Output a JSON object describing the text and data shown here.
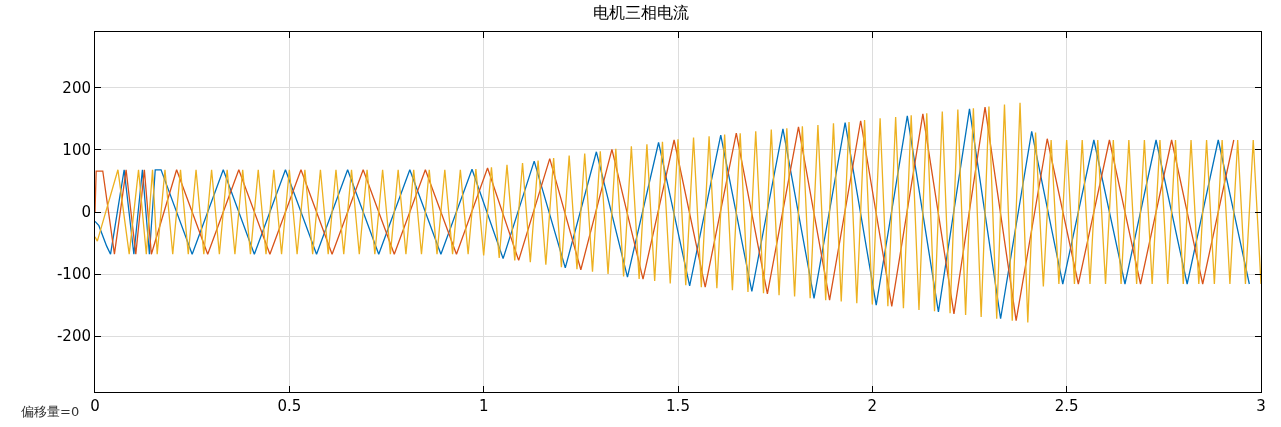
{
  "chart_data": {
    "type": "line",
    "title": "电机三相电流",
    "xlim": [
      0,
      3
    ],
    "xticks": [
      0,
      0.5,
      1,
      1.5,
      2,
      2.5,
      3
    ],
    "ylim": [
      -290,
      290
    ],
    "yticks": [
      -200,
      -100,
      0,
      100,
      200
    ],
    "grid": true,
    "annotations": [
      "偏移量=0"
    ],
    "series": [
      {
        "color": "#0072bd",
        "x": [
          0,
          0.01,
          0.03,
          0.04,
          0.075,
          0.1,
          0.122,
          0.14,
          0.155,
          0.17,
          0.25,
          0.33,
          0.41,
          0.49,
          0.57,
          0.65,
          0.73,
          0.81,
          0.89,
          0.97,
          1.05,
          1.13,
          1.21,
          1.29,
          1.37,
          1.45,
          1.53,
          1.61,
          1.69,
          1.77,
          1.85,
          1.93,
          2.01,
          2.09,
          2.17,
          2.25,
          2.33,
          2.41,
          2.49,
          2.57,
          2.65,
          2.73,
          2.81,
          2.89,
          2.97
        ],
        "values": [
          -15,
          -22,
          -55,
          -68,
          68,
          -68,
          68,
          -68,
          68,
          68,
          -68,
          68,
          -68,
          68,
          -68,
          68,
          -68,
          68,
          -68,
          69,
          -75,
          82,
          -90,
          97,
          -105,
          112,
          -119,
          124,
          -128,
          134,
          -139,
          144,
          -150,
          155,
          -161,
          166,
          -172,
          130,
          -116,
          116,
          -116,
          116,
          -116,
          116,
          -116
        ]
      },
      {
        "color": "#d95319",
        "x": [
          0,
          0.003,
          0.02,
          0.05,
          0.08,
          0.105,
          0.127,
          0.145,
          0.21,
          0.29,
          0.37,
          0.45,
          0.53,
          0.61,
          0.69,
          0.77,
          0.85,
          0.93,
          1.01,
          1.09,
          1.17,
          1.25,
          1.33,
          1.41,
          1.49,
          1.57,
          1.65,
          1.73,
          1.81,
          1.89,
          1.97,
          2.05,
          2.13,
          2.21,
          2.29,
          2.37,
          2.45,
          2.53,
          2.61,
          2.69,
          2.77,
          2.85,
          2.93
        ],
        "values": [
          0,
          66,
          66,
          -68,
          68,
          -68,
          68,
          -68,
          68,
          -68,
          68,
          -68,
          68,
          -68,
          68,
          -68,
          68,
          -68,
          71,
          -78,
          86,
          -93,
          101,
          -108,
          116,
          -121,
          127,
          -132,
          137,
          -142,
          147,
          -152,
          158,
          -164,
          169,
          -175,
          118,
          -116,
          116,
          -116,
          116,
          -116,
          116
        ]
      },
      {
        "color": "#edb120",
        "x": [
          0,
          0.006,
          0.059,
          0.088,
          0.112,
          0.132,
          0.148,
          0.16,
          0.18,
          0.2,
          0.22,
          0.24,
          0.26,
          0.28,
          0.3,
          0.32,
          0.34,
          0.36,
          0.38,
          0.4,
          0.42,
          0.44,
          0.46,
          0.48,
          0.5,
          0.52,
          0.54,
          0.56,
          0.58,
          0.6,
          0.62,
          0.64,
          0.66,
          0.68,
          0.7,
          0.72,
          0.74,
          0.76,
          0.78,
          0.8,
          0.82,
          0.84,
          0.86,
          0.88,
          0.9,
          0.92,
          0.94,
          0.96,
          0.98,
          1.0,
          1.02,
          1.04,
          1.06,
          1.08,
          1.1,
          1.12,
          1.14,
          1.16,
          1.18,
          1.2,
          1.22,
          1.24,
          1.26,
          1.28,
          1.3,
          1.32,
          1.34,
          1.36,
          1.38,
          1.4,
          1.42,
          1.44,
          1.46,
          1.48,
          1.5,
          1.52,
          1.54,
          1.56,
          1.58,
          1.6,
          1.62,
          1.64,
          1.66,
          1.68,
          1.7,
          1.72,
          1.74,
          1.76,
          1.78,
          1.8,
          1.82,
          1.84,
          1.86,
          1.88,
          1.9,
          1.92,
          1.94,
          1.96,
          1.98,
          2.0,
          2.02,
          2.04,
          2.06,
          2.08,
          2.1,
          2.12,
          2.14,
          2.16,
          2.18,
          2.2,
          2.22,
          2.24,
          2.26,
          2.28,
          2.3,
          2.32,
          2.34,
          2.36,
          2.38,
          2.4,
          2.42,
          2.44,
          2.46,
          2.48,
          2.5,
          2.52,
          2.54,
          2.56,
          2.58,
          2.6,
          2.62,
          2.64,
          2.66,
          2.68,
          2.7,
          2.72,
          2.74,
          2.76,
          2.78,
          2.8,
          2.82,
          2.84,
          2.86,
          2.88,
          2.9,
          2.92,
          2.94,
          2.96,
          2.98,
          3.0
        ],
        "values": [
          -40,
          -47,
          68,
          -68,
          68,
          -68,
          68,
          -68,
          68,
          -68,
          68,
          -68,
          68,
          -68,
          68,
          -68,
          68,
          -68,
          68,
          -68,
          68,
          -68,
          68,
          -68,
          68,
          -68,
          68,
          -68,
          68,
          -68,
          68,
          -68,
          68,
          -68,
          68,
          -68,
          68,
          -68,
          68,
          -68,
          68,
          -68,
          68,
          -68,
          68,
          -68,
          68,
          -68,
          69,
          -70,
          72,
          -74,
          76,
          -78,
          79,
          -81,
          83,
          -85,
          87,
          -89,
          91,
          -92,
          94,
          -96,
          98,
          -100,
          102,
          -104,
          106,
          -108,
          109,
          -111,
          113,
          -115,
          117,
          -118,
          120,
          -121,
          122,
          -123,
          125,
          -126,
          127,
          -129,
          130,
          -131,
          133,
          -134,
          135,
          -136,
          138,
          -139,
          140,
          -142,
          143,
          -144,
          145,
          -147,
          148,
          -149,
          151,
          -152,
          153,
          -155,
          156,
          -158,
          159,
          -160,
          162,
          -163,
          165,
          -166,
          167,
          -169,
          170,
          -172,
          173,
          -175,
          176,
          -178,
          128,
          -120,
          116,
          -116,
          116,
          -116,
          116,
          -116,
          116,
          -116,
          116,
          -116,
          116,
          -116,
          116,
          -116,
          116,
          -116,
          116,
          -116,
          116,
          -116,
          116,
          -116,
          116,
          -116,
          116,
          -116,
          116,
          -116
        ]
      }
    ]
  }
}
